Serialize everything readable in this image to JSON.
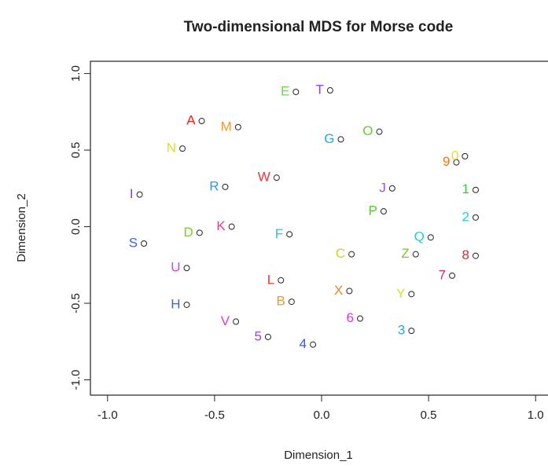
{
  "chart_data": {
    "type": "scatter",
    "title": "Two-dimensional MDS for Morse code",
    "x_label": "Dimension_1",
    "y_label": "Dimension_2",
    "xlim": [
      -1.08,
      1.08
    ],
    "ylim": [
      -1.1,
      1.08
    ],
    "xticks": [
      {
        "value": -1,
        "label": "-1.0"
      },
      {
        "value": -0.5,
        "label": "-0.5"
      },
      {
        "value": 0,
        "label": "0.0"
      },
      {
        "value": 0.5,
        "label": "0.5"
      },
      {
        "value": 1,
        "label": "1.0"
      }
    ],
    "yticks": [
      {
        "value": -1,
        "label": "-1.0"
      },
      {
        "value": -0.5,
        "label": "-0.5"
      },
      {
        "value": 0,
        "label": "0.0"
      },
      {
        "value": 0.5,
        "label": "0.5"
      },
      {
        "value": 1,
        "label": "1.0"
      }
    ],
    "labels": [
      "E",
      "T",
      "A",
      "M",
      "G",
      "O",
      "N",
      "9",
      "0",
      "W",
      "R",
      "I",
      "J",
      "1",
      "P",
      "2",
      "K",
      "D",
      "F",
      "Q",
      "S",
      "C",
      "Z",
      "8",
      "U",
      "7",
      "L",
      "X",
      "Y",
      "B",
      "H",
      "6",
      "V",
      "3",
      "5",
      "4"
    ],
    "x": [
      -0.12,
      0.04,
      -0.56,
      -0.39,
      0.09,
      0.27,
      -0.65,
      0.63,
      0.67,
      -0.21,
      -0.45,
      -0.85,
      0.33,
      0.72,
      0.29,
      0.72,
      -0.42,
      -0.57,
      -0.15,
      0.51,
      -0.83,
      0.14,
      0.44,
      0.72,
      -0.63,
      0.61,
      -0.19,
      0.13,
      0.42,
      -0.14,
      -0.63,
      0.18,
      -0.4,
      0.42,
      -0.25,
      -0.04
    ],
    "values": [
      0.88,
      0.89,
      0.69,
      0.65,
      0.57,
      0.62,
      0.51,
      0.42,
      0.46,
      0.32,
      0.26,
      0.21,
      0.25,
      0.24,
      0.1,
      0.06,
      0.0,
      -0.04,
      -0.05,
      -0.07,
      -0.11,
      -0.18,
      -0.18,
      -0.19,
      -0.27,
      -0.32,
      -0.35,
      -0.42,
      -0.44,
      -0.49,
      -0.51,
      -0.6,
      -0.62,
      -0.68,
      -0.72,
      -0.77
    ],
    "colors": [
      "#66dd44",
      "#8844ee",
      "#ee2222",
      "#ee9933",
      "#22aadd",
      "#66cc33",
      "#dddd22",
      "#ee7722",
      "#eedd22",
      "#ee3333",
      "#3399dd",
      "#9933dd",
      "#9955ee",
      "#33cc44",
      "#55cc33",
      "#22ccdd",
      "#ee3399",
      "#77cc33",
      "#33bbee",
      "#22ccdd",
      "#3366ee",
      "#ddcc22",
      "#77cc22",
      "#ee2222",
      "#cc44ee",
      "#ee2266",
      "#ee3322",
      "#ee8822",
      "#dddd22",
      "#ee9933",
      "#3366ee",
      "#dd33ee",
      "#ee33cc",
      "#22aadd",
      "#9944dd",
      "#3355ee"
    ]
  }
}
